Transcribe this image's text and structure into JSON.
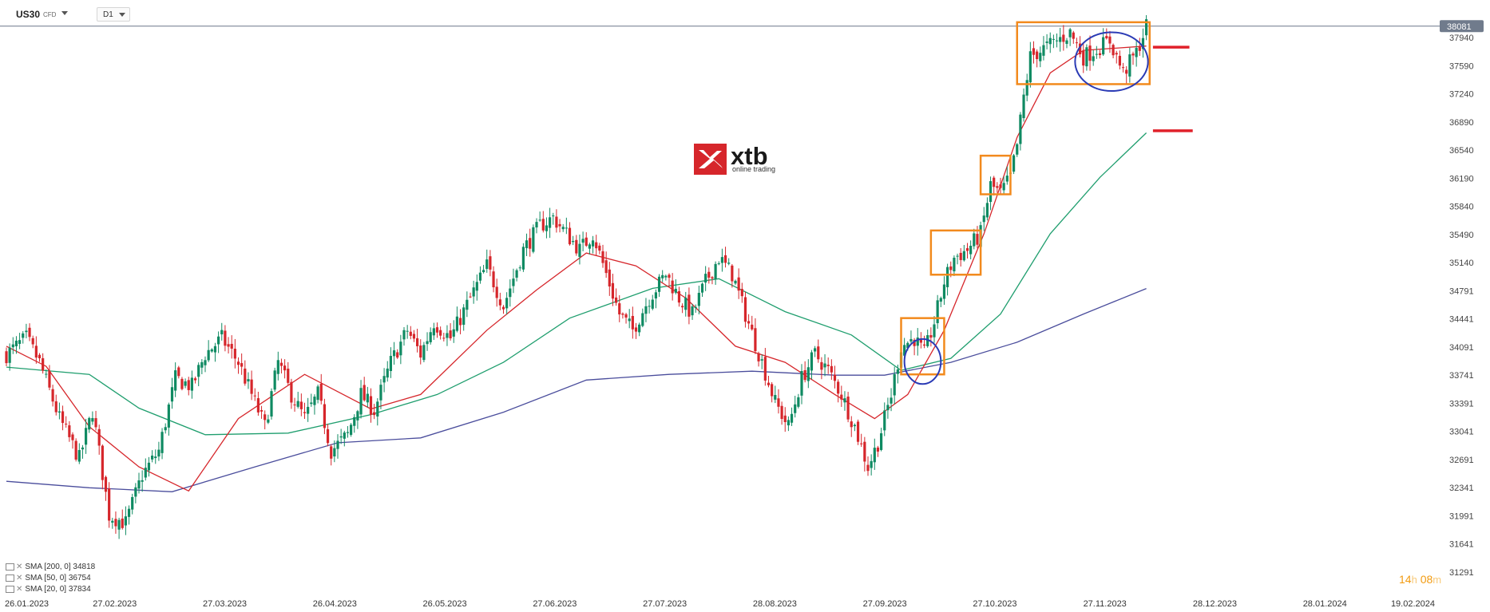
{
  "toolbar": {
    "symbol": "US30",
    "symbol_type": "CFD",
    "timeframe": "D1"
  },
  "logo": {
    "brand": "xtb",
    "tagline": "online trading",
    "color": "#d6262b"
  },
  "price_badge": "38081",
  "legend": [
    {
      "label": "SMA [200, 0] 34818",
      "color": "#4a4d9c"
    },
    {
      "label": "SMA [50, 0] 36754",
      "color": "#1f9e6e"
    },
    {
      "label": "SMA [20, 0] 37834",
      "color": "#d6262b"
    }
  ],
  "timer": {
    "hours": "14",
    "h_unit": "h",
    "minutes": "08",
    "m_unit": "m"
  },
  "chart_data": {
    "type": "candlestick",
    "y_ticks": [
      37940,
      37590,
      37240,
      36890,
      36540,
      36190,
      35840,
      35490,
      35140,
      34791,
      34441,
      34091,
      33741,
      33391,
      33041,
      32691,
      32341,
      31991,
      31641,
      31291
    ],
    "ylim": [
      31250,
      38150
    ],
    "x_ticks": [
      "26.01.2023",
      "27.02.2023",
      "27.03.2023",
      "26.04.2023",
      "26.05.2023",
      "27.06.2023",
      "27.07.2023",
      "28.08.2023",
      "27.09.2023",
      "27.10.2023",
      "27.11.2023",
      "28.12.2023",
      "28.01.2024",
      "19.02.2024"
    ],
    "last_price": 38081,
    "colors": {
      "up": "#0f8a62",
      "down": "#d6262b",
      "sma200": "#4a4d9c",
      "sma50": "#1f9e6e",
      "sma20": "#d6262b",
      "annotation_box": "#f28a1d",
      "annotation_circle": "#2b3bb5",
      "level": "#e0202a"
    },
    "close_path": [
      [
        0,
        34000
      ],
      [
        6,
        34200
      ],
      [
        10,
        33900
      ],
      [
        16,
        33200
      ],
      [
        22,
        32700
      ],
      [
        26,
        33300
      ],
      [
        31,
        32000
      ],
      [
        36,
        31900
      ],
      [
        41,
        32500
      ],
      [
        46,
        32800
      ],
      [
        51,
        33700
      ],
      [
        56,
        33600
      ],
      [
        60,
        34000
      ],
      [
        65,
        34200
      ],
      [
        70,
        33900
      ],
      [
        74,
        33500
      ],
      [
        78,
        33100
      ],
      [
        82,
        33900
      ],
      [
        86,
        33500
      ],
      [
        90,
        33200
      ],
      [
        94,
        33500
      ],
      [
        98,
        32800
      ],
      [
        103,
        33000
      ],
      [
        107,
        33500
      ],
      [
        111,
        33300
      ],
      [
        116,
        33900
      ],
      [
        121,
        34300
      ],
      [
        125,
        34000
      ],
      [
        129,
        34400
      ],
      [
        134,
        34200
      ],
      [
        140,
        34700
      ],
      [
        145,
        35100
      ],
      [
        150,
        34600
      ],
      [
        156,
        35300
      ],
      [
        161,
        35600
      ],
      [
        165,
        35700
      ],
      [
        169,
        35500
      ],
      [
        173,
        35300
      ],
      [
        177,
        35500
      ],
      [
        181,
        35000
      ],
      [
        185,
        34500
      ],
      [
        189,
        34300
      ],
      [
        194,
        34700
      ],
      [
        199,
        35000
      ],
      [
        203,
        34700
      ],
      [
        207,
        34500
      ],
      [
        211,
        34900
      ],
      [
        215,
        35200
      ],
      [
        219,
        35000
      ],
      [
        223,
        34500
      ],
      [
        228,
        33900
      ],
      [
        232,
        33400
      ],
      [
        236,
        33100
      ],
      [
        240,
        33700
      ],
      [
        244,
        34000
      ],
      [
        248,
        33800
      ],
      [
        252,
        33500
      ],
      [
        256,
        33100
      ],
      [
        260,
        32600
      ],
      [
        263,
        32900
      ],
      [
        267,
        33500
      ],
      [
        270,
        34100
      ],
      [
        274,
        34200
      ],
      [
        277,
        34000
      ],
      [
        280,
        34400
      ],
      [
        283,
        34900
      ],
      [
        286,
        35200
      ],
      [
        290,
        35300
      ],
      [
        294,
        35500
      ],
      [
        297,
        36100
      ],
      [
        300,
        36000
      ],
      [
        303,
        36200
      ],
      [
        305,
        36600
      ],
      [
        307,
        37200
      ],
      [
        309,
        37700
      ],
      [
        313,
        37800
      ],
      [
        317,
        37900
      ],
      [
        321,
        38000
      ],
      [
        325,
        37700
      ],
      [
        329,
        37800
      ],
      [
        333,
        37900
      ],
      [
        337,
        37500
      ],
      [
        341,
        37750
      ],
      [
        344,
        38081
      ]
    ],
    "sma200": [
      [
        0,
        32420
      ],
      [
        25,
        32340
      ],
      [
        50,
        32290
      ],
      [
        75,
        32600
      ],
      [
        100,
        32900
      ],
      [
        125,
        32960
      ],
      [
        150,
        33280
      ],
      [
        175,
        33680
      ],
      [
        200,
        33750
      ],
      [
        225,
        33790
      ],
      [
        250,
        33740
      ],
      [
        265,
        33740
      ],
      [
        285,
        33900
      ],
      [
        305,
        34150
      ],
      [
        325,
        34500
      ],
      [
        344,
        34818
      ]
    ],
    "sma50": [
      [
        0,
        33840
      ],
      [
        25,
        33750
      ],
      [
        40,
        33330
      ],
      [
        60,
        33000
      ],
      [
        85,
        33020
      ],
      [
        110,
        33250
      ],
      [
        130,
        33500
      ],
      [
        150,
        33900
      ],
      [
        170,
        34450
      ],
      [
        195,
        34820
      ],
      [
        215,
        34940
      ],
      [
        235,
        34530
      ],
      [
        255,
        34240
      ],
      [
        270,
        33800
      ],
      [
        285,
        33950
      ],
      [
        300,
        34500
      ],
      [
        315,
        35500
      ],
      [
        330,
        36200
      ],
      [
        344,
        36754
      ]
    ],
    "sma20": [
      [
        0,
        34100
      ],
      [
        12,
        33850
      ],
      [
        25,
        33100
      ],
      [
        40,
        32600
      ],
      [
        55,
        32300
      ],
      [
        70,
        33200
      ],
      [
        90,
        33750
      ],
      [
        110,
        33320
      ],
      [
        125,
        33500
      ],
      [
        145,
        34300
      ],
      [
        160,
        34800
      ],
      [
        175,
        35260
      ],
      [
        190,
        35100
      ],
      [
        205,
        34700
      ],
      [
        220,
        34100
      ],
      [
        235,
        33900
      ],
      [
        250,
        33500
      ],
      [
        262,
        33200
      ],
      [
        272,
        33500
      ],
      [
        283,
        34300
      ],
      [
        295,
        35500
      ],
      [
        305,
        36700
      ],
      [
        315,
        37500
      ],
      [
        325,
        37780
      ],
      [
        344,
        37834
      ]
    ],
    "boxes": [
      {
        "x0": 270,
        "x1": 283,
        "y0": 33750,
        "y1": 34450
      },
      {
        "x0": 279,
        "x1": 294,
        "y0": 34990,
        "y1": 35540
      },
      {
        "x0": 294,
        "x1": 303,
        "y0": 35990,
        "y1": 36470
      },
      {
        "x0": 305,
        "x1": 345,
        "y0": 37360,
        "y1": 38130
      }
    ],
    "circles": [
      {
        "cx": 276.5,
        "cy": 33910,
        "rx": 5.5,
        "ry": 280
      },
      {
        "cx": 333.5,
        "cy": 37640,
        "rx": 11,
        "ry": 365
      }
    ],
    "levels": [
      {
        "x0": 346,
        "x1": 357,
        "y": 37820
      },
      {
        "x0": 346,
        "x1": 358,
        "y": 36780
      }
    ]
  }
}
